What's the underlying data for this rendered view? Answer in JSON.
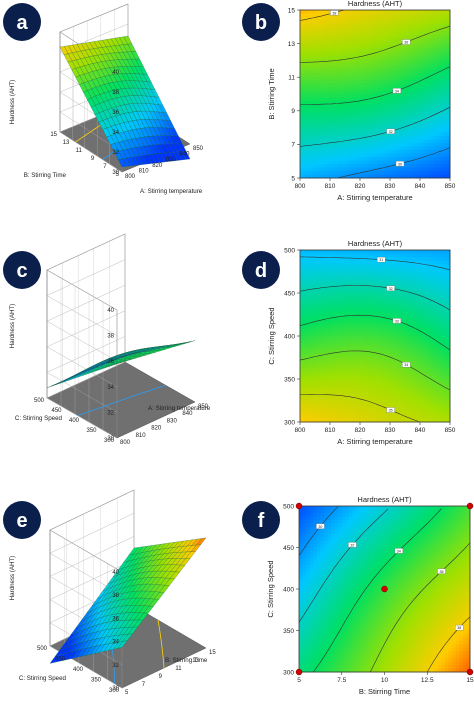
{
  "chart_data": [
    {
      "panel": "a",
      "type": "surface3d",
      "zlabel": "Hardness (AHT)",
      "xlabel": "A: Stirring temperature",
      "ylabel": "B: Stirring Time",
      "x_ticks": [
        "800",
        "810",
        "820",
        "830",
        "840",
        "850"
      ],
      "y_ticks": [
        "5",
        "7",
        "9",
        "11",
        "13",
        "15"
      ],
      "z_ticks": [
        "30",
        "32",
        "34",
        "36",
        "38",
        "40"
      ],
      "x_range": [
        800,
        850
      ],
      "y_range": [
        5,
        15
      ],
      "z_range": [
        30,
        40
      ],
      "corner_values": {
        "x_low_y_low": 30.5,
        "x_high_y_low": 28.5,
        "x_low_y_high": 38.5,
        "x_high_y_high": 36.8
      },
      "colors": [
        "#0033ff",
        "#00c8ff",
        "#00e060",
        "#a0e000",
        "#ffcc00",
        "#ff3300"
      ]
    },
    {
      "panel": "b",
      "type": "contour",
      "title": "Hardness (AHT)",
      "xlabel": "A: Stirring temperature",
      "ylabel": "B: Stirring Time",
      "x_ticks": [
        "800",
        "810",
        "820",
        "830",
        "840",
        "850"
      ],
      "y_ticks": [
        "5",
        "7",
        "9",
        "11",
        "13",
        "15"
      ],
      "x_range": [
        800,
        850
      ],
      "y_range": [
        5,
        15
      ],
      "corner_values": {
        "x_low_y_low": 30.5,
        "x_high_y_low": 28.5,
        "x_low_y_high": 38.5,
        "x_high_y_high": 36.8
      },
      "contour_levels": [
        30,
        32,
        34,
        36,
        38
      ]
    },
    {
      "panel": "c",
      "type": "surface3d",
      "zlabel": "Hardness (AHT)",
      "xlabel": "A: Stirring temperature",
      "ylabel": "C: Stirring Speed",
      "x_ticks": [
        "800",
        "810",
        "820",
        "830",
        "840",
        "850"
      ],
      "y_ticks": [
        "300",
        "350",
        "400",
        "450",
        "500"
      ],
      "z_ticks": [
        "30",
        "32",
        "34",
        "36",
        "38",
        "40"
      ],
      "x_range": [
        800,
        850
      ],
      "y_range": [
        300,
        500
      ],
      "z_range": [
        30,
        40
      ],
      "corner_values": {
        "x_low_y_low": 35.8,
        "x_high_y_low": 34.8,
        "x_low_y_high": 30.8,
        "x_high_y_high": 30.5
      },
      "colors": [
        "#0033ff",
        "#00c8ff",
        "#00e060",
        "#a0e000",
        "#ffcc00",
        "#ff3300"
      ]
    },
    {
      "panel": "d",
      "type": "contour",
      "title": "Hardness (AHT)",
      "xlabel": "A: Stirring temperature",
      "ylabel": "C: Stirring Speed",
      "x_ticks": [
        "800",
        "810",
        "820",
        "830",
        "840",
        "850"
      ],
      "y_ticks": [
        "300",
        "350",
        "400",
        "450",
        "500"
      ],
      "x_range": [
        800,
        850
      ],
      "y_range": [
        300,
        500
      ],
      "corner_values": {
        "x_low_y_low": 35.8,
        "x_high_y_low": 34.8,
        "x_low_y_high": 30.8,
        "x_high_y_high": 30.5
      },
      "contour_levels": [
        31,
        32,
        33,
        34,
        35
      ]
    },
    {
      "panel": "e",
      "type": "surface3d",
      "zlabel": "Hardness (AHT)",
      "xlabel": "B: Stirring Time",
      "ylabel": "C: Stirring Speed",
      "x_ticks": [
        "5",
        "7",
        "9",
        "11",
        "13",
        "15"
      ],
      "y_ticks": [
        "300",
        "350",
        "400",
        "450",
        "500"
      ],
      "z_ticks": [
        "30",
        "32",
        "34",
        "36",
        "38",
        "40"
      ],
      "x_range": [
        5,
        15
      ],
      "y_range": [
        300,
        500
      ],
      "z_range": [
        30,
        40
      ],
      "corner_values": {
        "x_low_y_low": 33.5,
        "x_high_y_low": 39.5,
        "x_low_y_high": 28.5,
        "x_high_y_high": 35.0
      },
      "colors": [
        "#0033ff",
        "#00c8ff",
        "#00e060",
        "#a0e000",
        "#ffcc00",
        "#ff3300"
      ]
    },
    {
      "panel": "f",
      "type": "contour",
      "title": "Hardness (AHT)",
      "xlabel": "B: Stirring Time",
      "ylabel": "C: Stirring Speed",
      "x_ticks": [
        "5",
        "7.5",
        "10",
        "12.5",
        "15"
      ],
      "y_ticks": [
        "300",
        "350",
        "400",
        "450",
        "500"
      ],
      "x_range": [
        5,
        15
      ],
      "y_range": [
        300,
        500
      ],
      "corner_values": {
        "x_low_y_low": 33.5,
        "x_high_y_low": 39.5,
        "x_low_y_high": 28.5,
        "x_high_y_high": 35.0
      },
      "contour_levels": [
        30,
        32,
        34,
        36,
        38
      ],
      "design_points": [
        [
          5,
          300
        ],
        [
          15,
          300
        ],
        [
          5,
          500
        ],
        [
          15,
          500
        ],
        [
          10,
          400
        ]
      ]
    }
  ]
}
